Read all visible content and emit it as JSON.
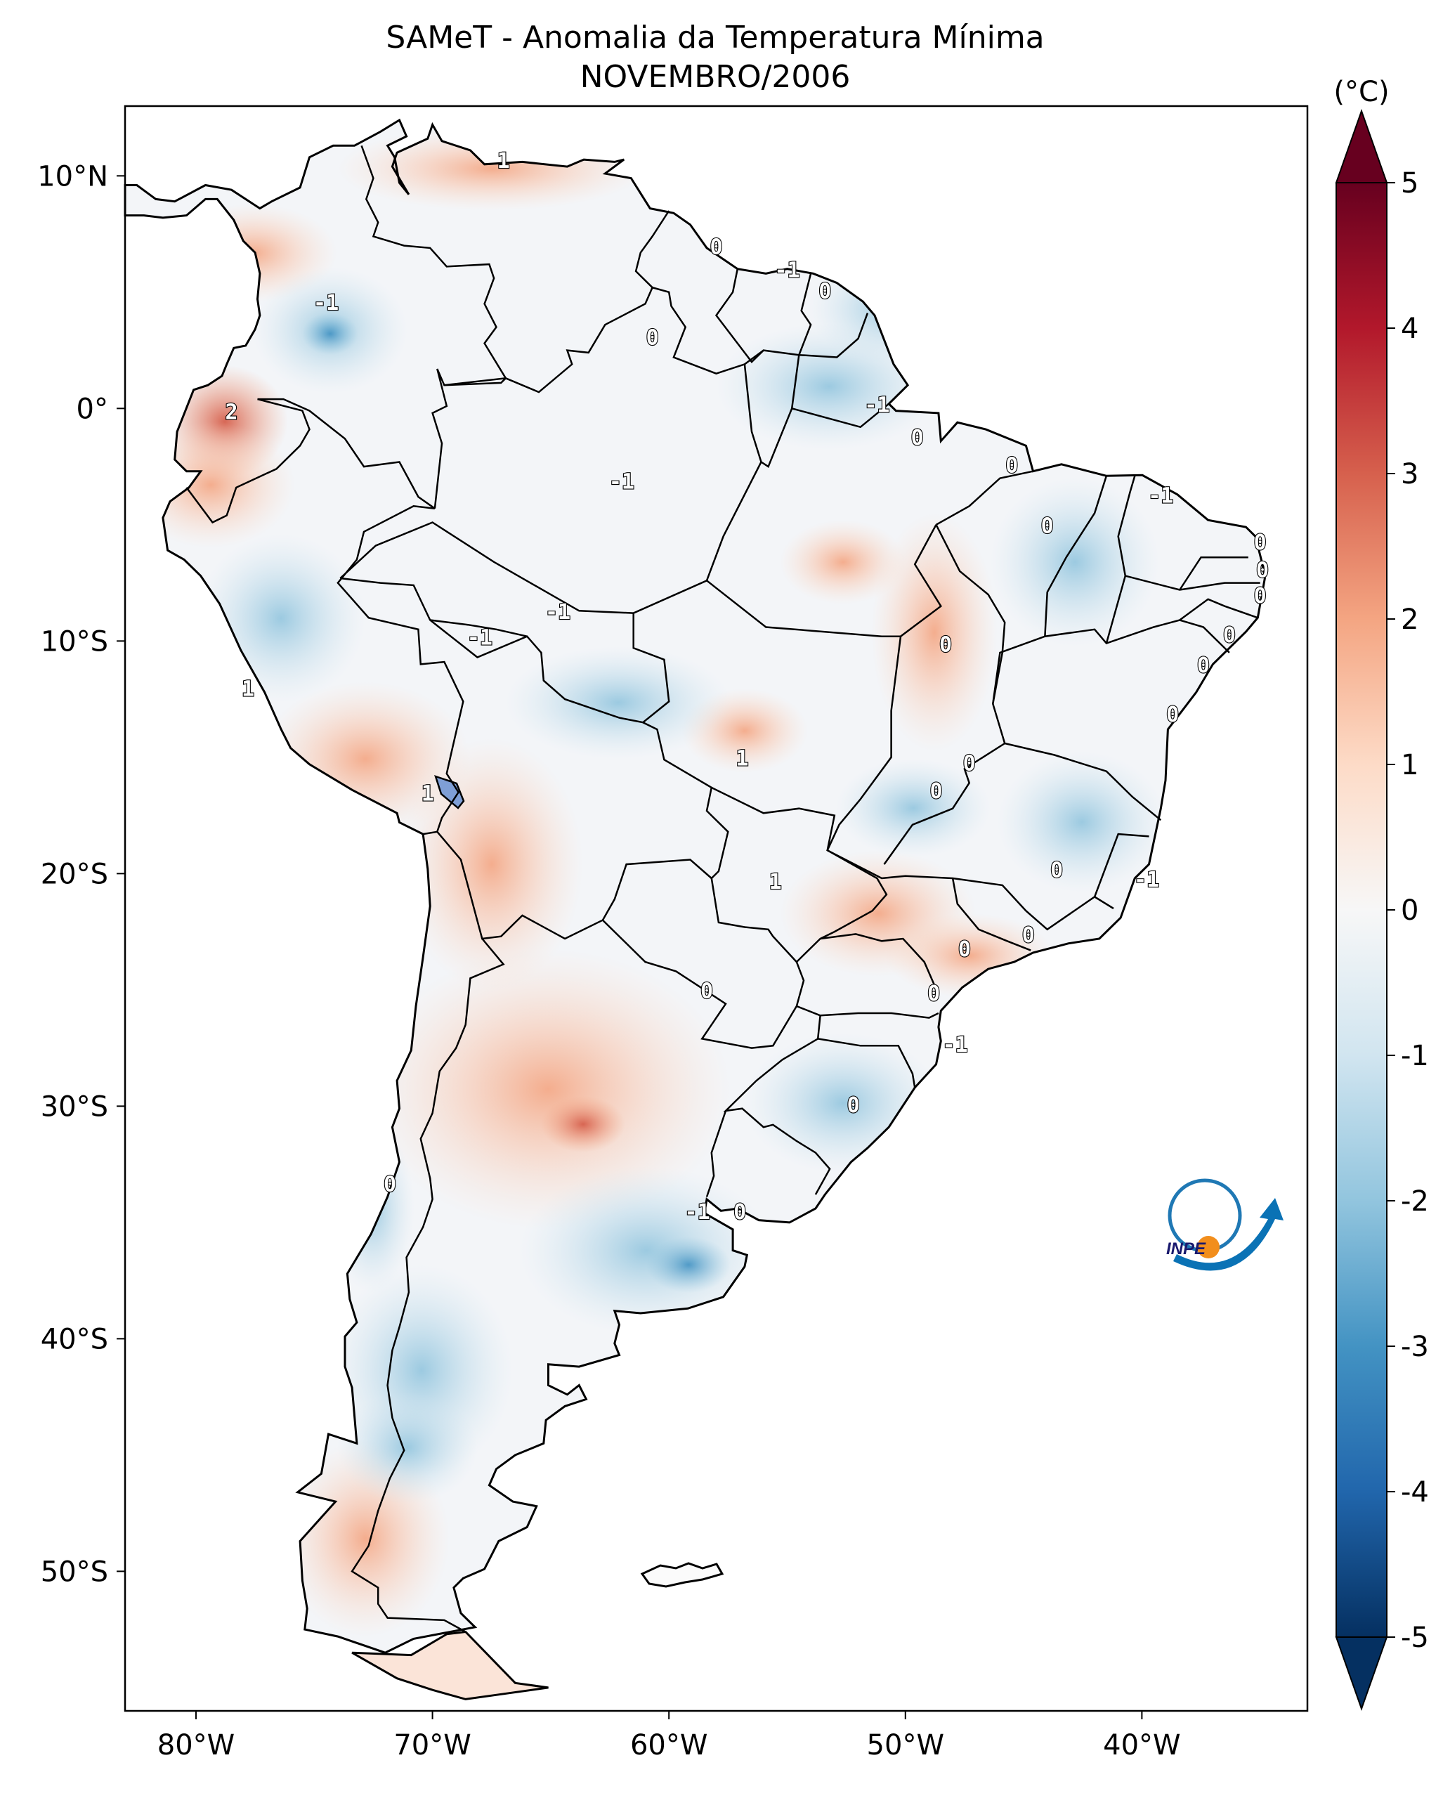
{
  "title": {
    "line1": "SAMeT - Anomalia da Temperatura Mínima",
    "line2": "NOVEMBRO/2006"
  },
  "colorbar": {
    "unit": "(°C)",
    "ticks": [
      "5",
      "4",
      "3",
      "2",
      "1",
      "0",
      "-1",
      "-2",
      "-3",
      "-4",
      "-5"
    ],
    "range": [
      -5,
      5
    ],
    "colors": {
      "low": "#053061",
      "mid_low": "#4393c3",
      "zero": "#f7f7f7",
      "mid_high": "#d6604d",
      "high": "#67001f"
    }
  },
  "axes": {
    "lon_labels": [
      "80°W",
      "70°W",
      "60°W",
      "50°W",
      "40°W"
    ],
    "lat_labels": [
      "10°N",
      "0°",
      "10°S",
      "20°S",
      "30°S",
      "40°S",
      "50°S"
    ],
    "lon_values": [
      -80,
      -70,
      -60,
      -50,
      -40
    ],
    "lat_values": [
      10,
      0,
      -10,
      -20,
      -30,
      -40,
      -50
    ],
    "lon_range": [
      -83,
      -33
    ],
    "lat_range": [
      -56,
      13
    ]
  },
  "contour_labels": [
    {
      "text": "1",
      "lon": -67,
      "lat": 10.6
    },
    {
      "text": "0",
      "lon": -58,
      "lat": 6.9
    },
    {
      "text": "-1",
      "lon": -55,
      "lat": 5.9
    },
    {
      "text": "0",
      "lon": -53.4,
      "lat": 5
    },
    {
      "text": "-1",
      "lon": -74.5,
      "lat": 4.5
    },
    {
      "text": "0",
      "lon": -60.7,
      "lat": 3
    },
    {
      "text": "2",
      "lon": -78.5,
      "lat": -0.2
    },
    {
      "text": "-1",
      "lon": -51.2,
      "lat": 0.1
    },
    {
      "text": "0",
      "lon": -49.5,
      "lat": -1.3
    },
    {
      "text": "0",
      "lon": -45.5,
      "lat": -2.5
    },
    {
      "text": "-1",
      "lon": -62,
      "lat": -3.2
    },
    {
      "text": "-1",
      "lon": -39.2,
      "lat": -3.8
    },
    {
      "text": "0",
      "lon": -44,
      "lat": -5.1
    },
    {
      "text": "0",
      "lon": -35,
      "lat": -5.8
    },
    {
      "text": "0",
      "lon": -34.9,
      "lat": -7
    },
    {
      "text": "0",
      "lon": -35,
      "lat": -8.1
    },
    {
      "text": "-1",
      "lon": -64.7,
      "lat": -8.8
    },
    {
      "text": "0",
      "lon": -36.3,
      "lat": -9.8
    },
    {
      "text": "-1",
      "lon": -68,
      "lat": -9.9
    },
    {
      "text": "0",
      "lon": -48.3,
      "lat": -10.2
    },
    {
      "text": "0",
      "lon": -37.4,
      "lat": -11.1
    },
    {
      "text": "1",
      "lon": -77.8,
      "lat": -12.1
    },
    {
      "text": "0",
      "lon": -38.7,
      "lat": -13.2
    },
    {
      "text": "1",
      "lon": -56.9,
      "lat": -15.1
    },
    {
      "text": "0",
      "lon": -47.3,
      "lat": -15.3
    },
    {
      "text": "1",
      "lon": -70.2,
      "lat": -16.6
    },
    {
      "text": "0",
      "lon": -48.7,
      "lat": -16.5
    },
    {
      "text": "0",
      "lon": -43.6,
      "lat": -19.9
    },
    {
      "text": "-1",
      "lon": -39.8,
      "lat": -20.3
    },
    {
      "text": "1",
      "lon": -55.5,
      "lat": -20.4
    },
    {
      "text": "0",
      "lon": -44.8,
      "lat": -22.7
    },
    {
      "text": "0",
      "lon": -47.5,
      "lat": -23.3
    },
    {
      "text": "0",
      "lon": -58.4,
      "lat": -25.1
    },
    {
      "text": "0",
      "lon": -48.8,
      "lat": -25.2
    },
    {
      "text": "-1",
      "lon": -47.9,
      "lat": -27.4
    },
    {
      "text": "0",
      "lon": -52.2,
      "lat": -30
    },
    {
      "text": "0",
      "lon": -71.8,
      "lat": -33.4
    },
    {
      "text": "-1",
      "lon": -58.8,
      "lat": -34.6
    },
    {
      "text": "0",
      "lon": -57,
      "lat": -34.6
    }
  ]
}
